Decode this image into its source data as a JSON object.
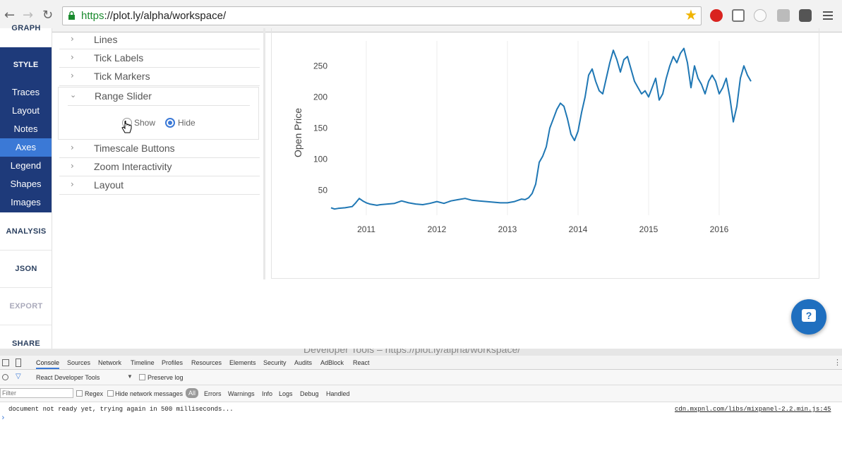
{
  "browser": {
    "url_scheme": "https",
    "url_rest": "://plot.ly/alpha/workspace/"
  },
  "sidebar": {
    "graph_label": "GRAPH",
    "style_label": "STYLE",
    "style_items": [
      {
        "label": "Traces",
        "active": false
      },
      {
        "label": "Layout",
        "active": false
      },
      {
        "label": "Notes",
        "active": false
      },
      {
        "label": "Axes",
        "active": true
      },
      {
        "label": "Legend",
        "active": false
      },
      {
        "label": "Shapes",
        "active": false
      },
      {
        "label": "Images",
        "active": false
      }
    ],
    "analysis_label": "ANALYSIS",
    "json_label": "JSON",
    "export_label": "EXPORT",
    "share_label": "SHARE"
  },
  "panel": {
    "sections": [
      {
        "label": "Lines",
        "expanded": false
      },
      {
        "label": "Tick Labels",
        "expanded": false
      },
      {
        "label": "Tick Markers",
        "expanded": false
      },
      {
        "label": "Range Slider",
        "expanded": true
      },
      {
        "label": "Timescale Buttons",
        "expanded": false
      },
      {
        "label": "Zoom Interactivity",
        "expanded": false
      },
      {
        "label": "Layout",
        "expanded": false
      }
    ],
    "range_slider": {
      "options": [
        "Show",
        "Hide"
      ],
      "selected": "Hide"
    }
  },
  "chart_data": {
    "type": "line",
    "ylabel": "Open Price",
    "xlabel": "",
    "title": "",
    "x_ticks": [
      "2011",
      "2012",
      "2013",
      "2014",
      "2015",
      "2016"
    ],
    "y_ticks": [
      50,
      100,
      150,
      200,
      250
    ],
    "ylim": [
      10,
      290
    ],
    "xlim": [
      2010.45,
      2016.65
    ],
    "line_color": "#1f77b4",
    "grid": "vertical only",
    "series": [
      {
        "x": [
          2010.5,
          2010.55,
          2010.6,
          2010.7,
          2010.8,
          2010.85,
          2010.9,
          2010.95,
          2011.0,
          2011.05,
          2011.1,
          2011.15,
          2011.2,
          2011.3,
          2011.4,
          2011.5,
          2011.6,
          2011.7,
          2011.8,
          2011.9,
          2012.0,
          2012.1,
          2012.2,
          2012.3,
          2012.4,
          2012.5,
          2012.6,
          2012.7,
          2012.8,
          2012.9,
          2013.0,
          2013.1,
          2013.2,
          2013.25,
          2013.3,
          2013.35,
          2013.4,
          2013.45,
          2013.5,
          2013.55,
          2013.6,
          2013.65,
          2013.7,
          2013.75,
          2013.8,
          2013.85,
          2013.9,
          2013.95,
          2014.0,
          2014.05,
          2014.1,
          2014.15,
          2014.2,
          2014.25,
          2014.3,
          2014.35,
          2014.4,
          2014.45,
          2014.5,
          2014.55,
          2014.6,
          2014.65,
          2014.7,
          2014.75,
          2014.8,
          2014.85,
          2014.9,
          2014.95,
          2015.0,
          2015.05,
          2015.1,
          2015.15,
          2015.2,
          2015.25,
          2015.3,
          2015.35,
          2015.4,
          2015.45,
          2015.5,
          2015.55,
          2015.6,
          2015.65,
          2015.7,
          2015.75,
          2015.8,
          2015.85,
          2015.9,
          2015.95,
          2016.0,
          2016.05,
          2016.1,
          2016.15,
          2016.2,
          2016.25,
          2016.3,
          2016.35,
          2016.4,
          2016.45
        ],
        "y": [
          22,
          20,
          21,
          22,
          24,
          30,
          37,
          33,
          30,
          28,
          27,
          26,
          27,
          28,
          29,
          33,
          30,
          28,
          27,
          29,
          32,
          29,
          33,
          35,
          37,
          34,
          33,
          32,
          31,
          30,
          30,
          32,
          36,
          35,
          38,
          45,
          60,
          95,
          105,
          120,
          150,
          165,
          180,
          190,
          185,
          165,
          140,
          130,
          145,
          175,
          200,
          235,
          245,
          225,
          210,
          205,
          230,
          255,
          275,
          260,
          240,
          260,
          265,
          245,
          225,
          215,
          205,
          210,
          200,
          215,
          230,
          195,
          205,
          230,
          250,
          265,
          255,
          270,
          278,
          255,
          215,
          250,
          230,
          220,
          205,
          225,
          235,
          225,
          205,
          215,
          230,
          200,
          160,
          185,
          230,
          250,
          235,
          225
        ]
      }
    ]
  },
  "help_button_glyph": "?",
  "devtools": {
    "title": "Developer Tools – https://plot.ly/alpha/workspace/",
    "tabs": [
      "Console",
      "Sources",
      "Network",
      "Timeline",
      "Profiles",
      "Resources",
      "Elements",
      "Security",
      "Audits",
      "AdBlock",
      "React"
    ],
    "context": "React Developer Tools",
    "preserve_log": "Preserve log",
    "filter_placeholder": "Filter",
    "regex": "Regex",
    "hide_network": "Hide network messages",
    "levels": [
      "All",
      "Errors",
      "Warnings",
      "Info",
      "Logs",
      "Debug",
      "Handled"
    ],
    "console_message": "document not ready yet, trying again in 500 milliseconds...",
    "console_source": "cdn.mxpnl.com/libs/mixpanel-2.2.min.js:45",
    "prompt": "›"
  }
}
